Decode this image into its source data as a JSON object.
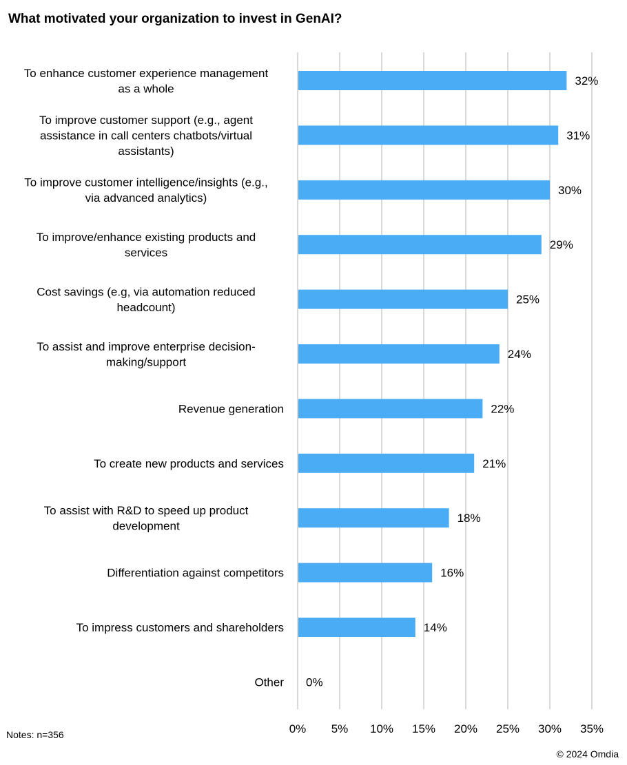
{
  "title": "What motivated your organization to invest in GenAI?",
  "notes": "Notes: n=356",
  "copyright": "© 2024 Omdia",
  "chart_data": {
    "type": "bar",
    "orientation": "horizontal",
    "title": "What motivated your organization to invest in GenAI?",
    "categories": [
      [
        "To enhance customer experience management",
        "as a whole"
      ],
      [
        "To improve customer support (e.g., agent",
        "assistance in call centers chatbots/virtual",
        "assistants)"
      ],
      [
        "To improve customer intelligence/insights (e.g.,",
        "via advanced analytics)"
      ],
      [
        "To improve/enhance existing products and",
        "services"
      ],
      [
        "Cost savings (e.g, via automation reduced",
        "headcount)"
      ],
      [
        "To assist and improve enterprise decision-",
        "making/support"
      ],
      [
        "Revenue generation"
      ],
      [
        "To create new products and services"
      ],
      [
        "To assist with R&D to speed up product",
        "development"
      ],
      [
        "Differentiation against competitors"
      ],
      [
        "To impress customers and shareholders"
      ],
      [
        "Other"
      ]
    ],
    "values": [
      32,
      31,
      30,
      29,
      25,
      24,
      22,
      21,
      18,
      16,
      14,
      0
    ],
    "data_labels": [
      "32%",
      "31%",
      "30%",
      "29%",
      "25%",
      "24%",
      "22%",
      "21%",
      "18%",
      "16%",
      "14%",
      "0%"
    ],
    "xlim": [
      0,
      35
    ],
    "x_ticks": [
      0,
      5,
      10,
      15,
      20,
      25,
      30,
      35
    ],
    "x_tick_labels": [
      "0%",
      "5%",
      "10%",
      "15%",
      "20%",
      "25%",
      "30%",
      "35%"
    ],
    "grid": true,
    "bar_color": "#4BACF6",
    "grid_color": "#D9D9D9"
  }
}
